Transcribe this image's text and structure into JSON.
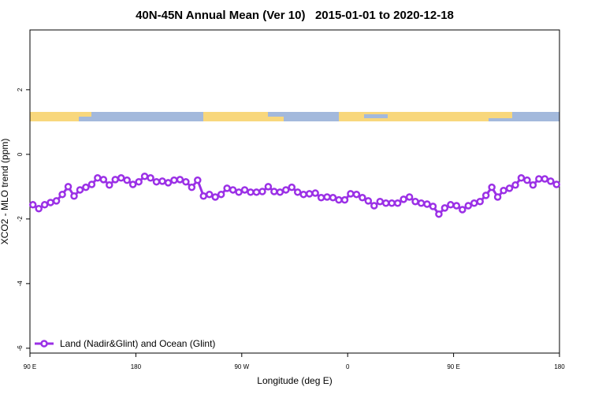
{
  "chart_data": {
    "type": "line",
    "title": "40N-45N Annual Mean (Ver 10)   2015-01-01 to 2020-12-18",
    "xlabel": "Longitude (deg E)",
    "ylabel": "XCO2 - MLO trend (ppm)",
    "xlim": [
      90,
      540
    ],
    "ylim": [
      -6.15,
      3.85
    ],
    "xticks": [
      {
        "value": 90,
        "label": "90 E"
      },
      180,
      {
        "value": 270,
        "label": "90 W"
      },
      {
        "value": 360,
        "label": "0"
      },
      {
        "value": 450,
        "label": "90 E"
      },
      {
        "value": 540,
        "label": "180"
      }
    ],
    "yticks": [
      -6,
      -4,
      -2,
      0,
      2
    ],
    "legend": "lower left",
    "x": [
      92.5,
      97.5,
      102.5,
      107.5,
      112.5,
      117.5,
      122.5,
      127.5,
      132.5,
      137.5,
      142.5,
      147.5,
      152.5,
      157.5,
      162.5,
      167.5,
      172.5,
      177.5,
      182.5,
      187.5,
      192.5,
      197.5,
      202.5,
      207.5,
      212.5,
      217.5,
      222.5,
      227.5,
      232.5,
      237.5,
      242.5,
      247.5,
      252.5,
      257.5,
      262.5,
      267.5,
      272.5,
      277.5,
      282.5,
      287.5,
      292.5,
      297.5,
      302.5,
      307.5,
      312.5,
      317.5,
      322.5,
      327.5,
      332.5,
      337.5,
      342.5,
      347.5,
      352.5,
      357.5,
      362.5,
      367.5,
      372.5,
      377.5,
      382.5,
      387.5,
      392.5,
      397.5,
      402.5,
      407.5,
      412.5,
      417.5,
      422.5,
      427.5,
      432.5,
      437.5,
      442.5,
      447.5,
      452.5,
      457.5,
      462.5,
      467.5,
      472.5,
      477.5,
      482.5,
      487.5,
      492.5,
      497.5,
      502.5,
      507.5,
      512.5,
      517.5,
      522.5,
      527.5,
      532.5,
      537.5
    ],
    "series": [
      {
        "name": "Land (Nadir&Glint) and Ocean (Glint)",
        "color": "#9b30e6",
        "values": [
          -1.56,
          -1.68,
          -1.56,
          -1.49,
          -1.44,
          -1.24,
          -1.0,
          -1.29,
          -1.1,
          -1.02,
          -0.93,
          -0.73,
          -0.78,
          -0.95,
          -0.78,
          -0.73,
          -0.8,
          -0.93,
          -0.85,
          -0.68,
          -0.73,
          -0.85,
          -0.83,
          -0.88,
          -0.8,
          -0.78,
          -0.85,
          -1.02,
          -0.8,
          -1.29,
          -1.24,
          -1.32,
          -1.24,
          -1.05,
          -1.1,
          -1.17,
          -1.1,
          -1.17,
          -1.17,
          -1.15,
          -1.0,
          -1.15,
          -1.17,
          -1.1,
          -1.02,
          -1.17,
          -1.24,
          -1.22,
          -1.2,
          -1.34,
          -1.32,
          -1.34,
          -1.41,
          -1.41,
          -1.22,
          -1.24,
          -1.34,
          -1.44,
          -1.59,
          -1.46,
          -1.51,
          -1.51,
          -1.51,
          -1.39,
          -1.32,
          -1.46,
          -1.51,
          -1.54,
          -1.61,
          -1.85,
          -1.66,
          -1.56,
          -1.59,
          -1.71,
          -1.59,
          -1.51,
          -1.46,
          -1.27,
          -1.02,
          -1.32,
          -1.12,
          -1.05,
          -0.95,
          -0.73,
          -0.8,
          -0.95,
          -0.76,
          -0.76,
          -0.83,
          -0.93
        ]
      }
    ]
  }
}
